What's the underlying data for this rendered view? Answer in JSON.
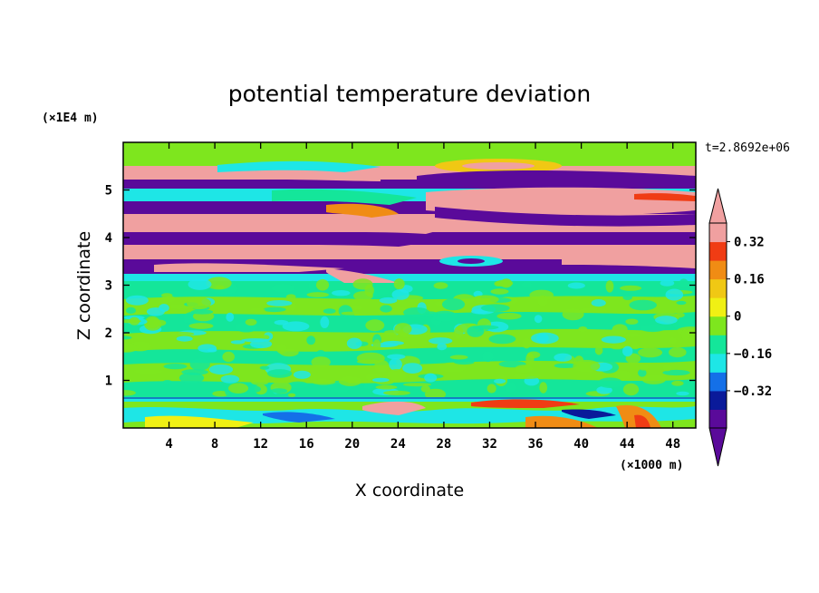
{
  "chart_data": {
    "type": "heatmap",
    "title": "potential temperature deviation",
    "xlabel": "X coordinate",
    "ylabel": "Z coordinate",
    "x_unit": "(×1000 m)",
    "y_unit": "(×1E4 m)",
    "time_label": "t=2.8692e+06",
    "xlim": [
      0,
      50
    ],
    "ylim": [
      0,
      6
    ],
    "x_ticks": [
      4,
      8,
      12,
      16,
      20,
      24,
      28,
      32,
      36,
      40,
      44,
      48
    ],
    "y_ticks": [
      1,
      2,
      3,
      4,
      5
    ],
    "colorbar": {
      "levels": [
        -0.48,
        -0.4,
        -0.32,
        -0.24,
        -0.16,
        -0.08,
        0,
        0.08,
        0.16,
        0.24,
        0.32,
        0.4
      ],
      "tick_values": [
        0.32,
        0.16,
        0,
        -0.16,
        -0.32
      ],
      "tick_labels": [
        "0.32",
        "0.16",
        "0",
        "−0.16",
        "−0.32"
      ],
      "colors": [
        "#5a0a9a",
        "#0a1a9a",
        "#1470e8",
        "#1ee6e6",
        "#14e69a",
        "#7ee61e",
        "#f0f014",
        "#f0c814",
        "#f08c14",
        "#f03c14",
        "#f0a0a0"
      ],
      "extend": "both"
    }
  }
}
